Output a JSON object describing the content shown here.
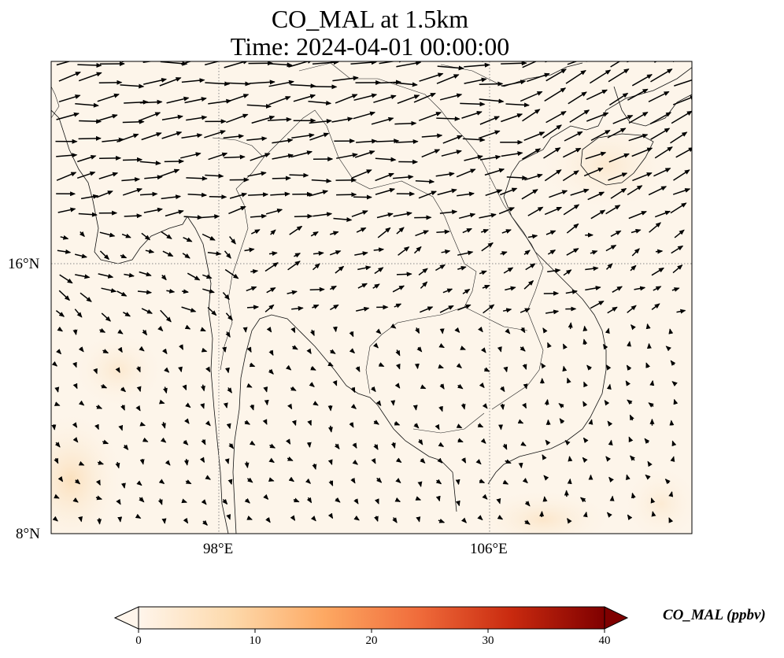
{
  "title_line1": "CO_MAL at 1.5km",
  "title_line2": "Time: 2024-04-01 00:00:00",
  "map": {
    "lon_ticks": [
      "98°E",
      "106°E"
    ],
    "lat_ticks": [
      "16°N",
      "8°N"
    ],
    "gridlines": true,
    "background_color": "#fdf5ea",
    "wind_vectors": true
  },
  "colorbar": {
    "label": "CO_MAL (ppbv)",
    "ticks": [
      "0",
      "10",
      "20",
      "30",
      "40"
    ],
    "range": [
      0,
      40
    ],
    "extend": "both",
    "colormap": [
      "#fff5eb",
      "#fdd9ab",
      "#fda862",
      "#f06c3b",
      "#c92a0f",
      "#7f0000"
    ]
  }
}
